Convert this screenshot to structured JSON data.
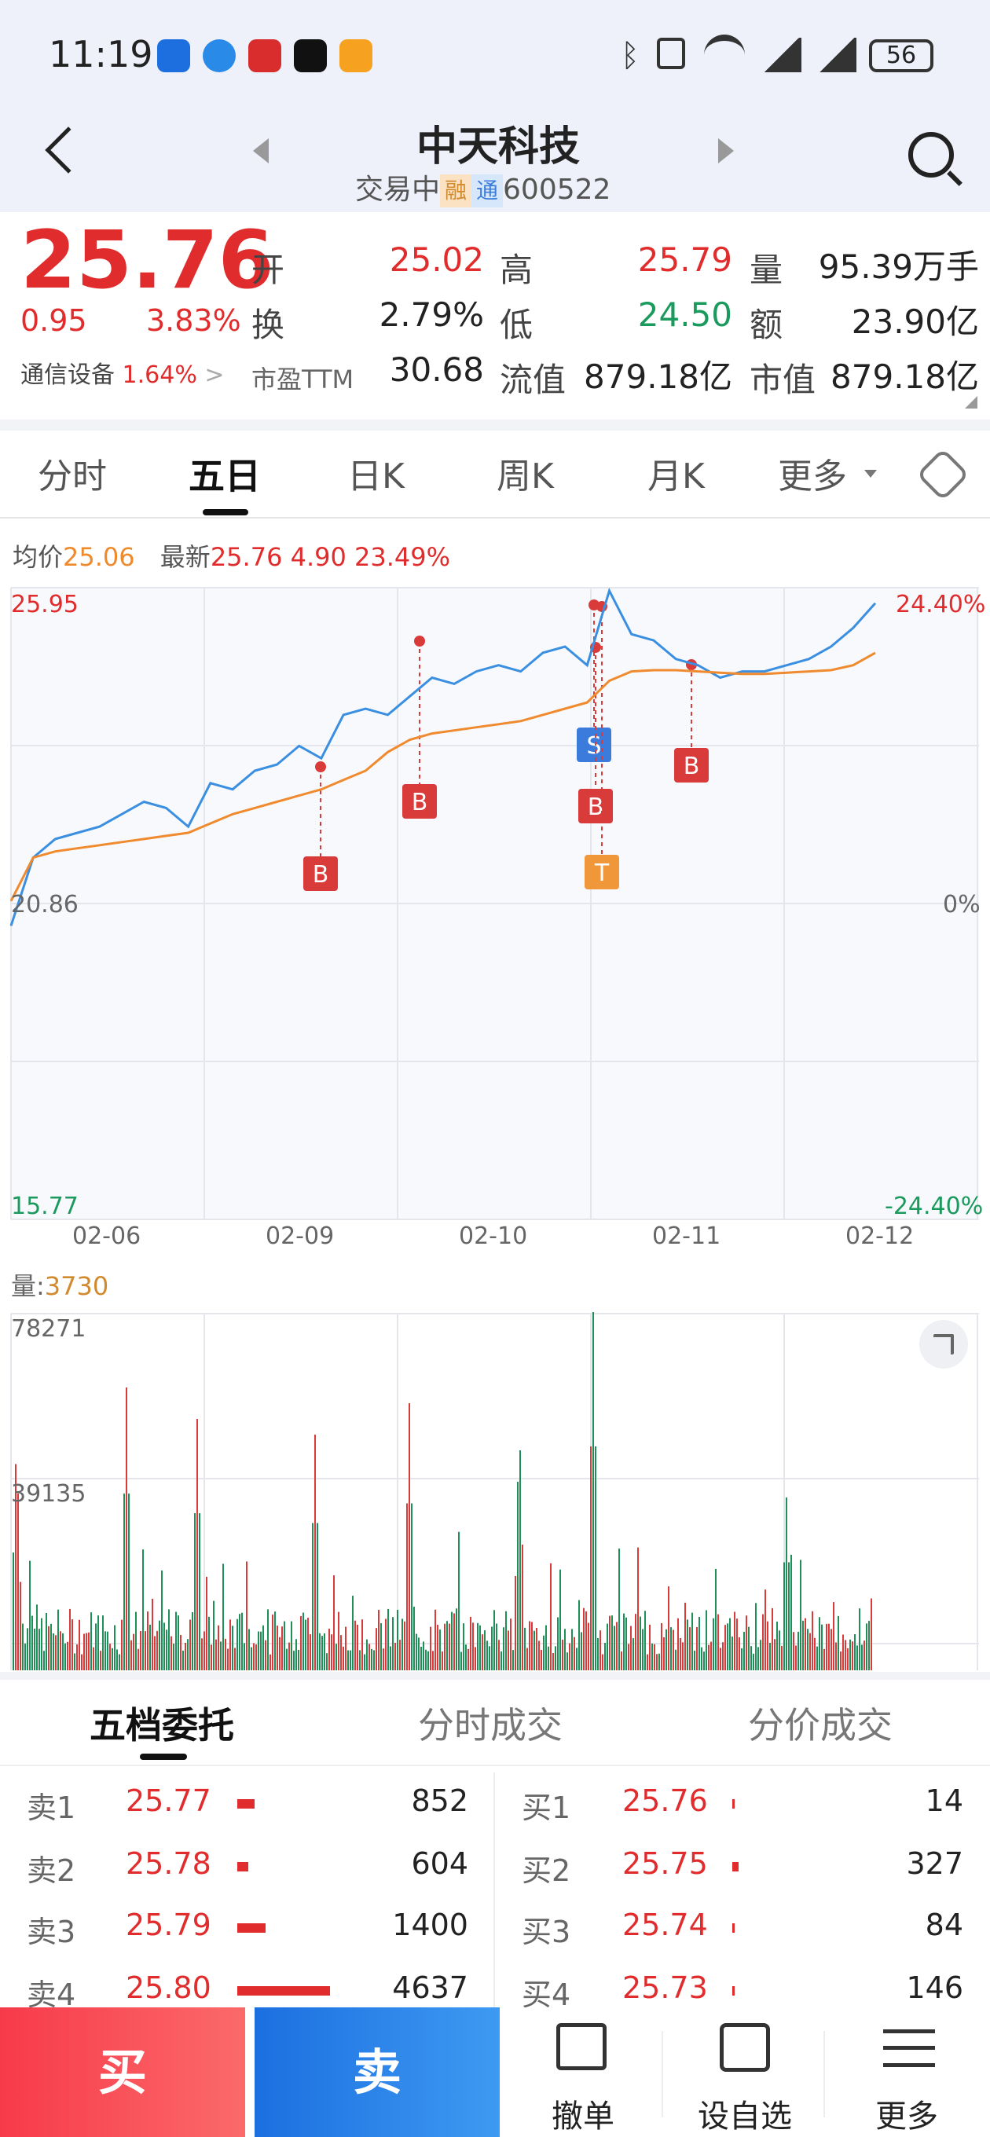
{
  "status_bar": {
    "time": "11:19",
    "battery": "56"
  },
  "header": {
    "title": "中天科技",
    "status": "交易中",
    "tag_rong": "融",
    "tag_tong": "通",
    "code": "600522"
  },
  "quote": {
    "price": "25.76",
    "change": "0.95",
    "change_pct": "3.83%",
    "sector_name": "通信设备",
    "sector_pct": "1.64%",
    "open_label": "开",
    "open": "25.02",
    "high_label": "高",
    "high": "25.79",
    "volume_label": "量",
    "volume": "95.39万手",
    "turnover_label": "换",
    "turnover": "2.79%",
    "low_label": "低",
    "low": "24.50",
    "amount_label": "额",
    "amount": "23.90亿",
    "pe_label": "市盈TTM",
    "pe": "30.68",
    "float_cap_label": "流值",
    "float_cap": "879.18亿",
    "market_cap_label": "市值",
    "market_cap": "879.18亿"
  },
  "chart_tabs": [
    "分时",
    "五日",
    "日K",
    "周K",
    "月K",
    "更多"
  ],
  "chart_info": {
    "avg_label": "均价",
    "avg": "25.06",
    "latest_label": "最新",
    "latest": "25.76",
    "change": "4.90",
    "change_pct": "23.49%"
  },
  "chart_data": {
    "type": "line",
    "x_ticks": [
      "02-06",
      "02-09",
      "02-10",
      "02-11",
      "02-12"
    ],
    "y_left": [
      "25.95",
      "20.86",
      "15.77"
    ],
    "y_right": [
      "24.40%",
      "0%",
      "-24.40%"
    ],
    "ylim": [
      15.77,
      25.95
    ],
    "series": [
      {
        "key": "price",
        "values": [
          20.5,
          21.6,
          21.9,
          22.0,
          22.1,
          22.3,
          22.5,
          22.4,
          22.1,
          22.8,
          22.7,
          23.0,
          23.1,
          23.4,
          23.2,
          23.9,
          24.0,
          23.9,
          24.2,
          24.5,
          24.4,
          24.6,
          24.7,
          24.6,
          24.9,
          25.0,
          24.7,
          25.9,
          25.2,
          25.1,
          24.8,
          24.7,
          24.5,
          24.6,
          24.6,
          24.7,
          24.8,
          25.0,
          25.3,
          25.7
        ]
      },
      {
        "key": "avg",
        "values": [
          20.9,
          21.6,
          21.7,
          21.75,
          21.8,
          21.85,
          21.9,
          21.95,
          22.0,
          22.15,
          22.3,
          22.4,
          22.5,
          22.6,
          22.7,
          22.85,
          23.0,
          23.3,
          23.5,
          23.6,
          23.65,
          23.7,
          23.75,
          23.8,
          23.9,
          24.0,
          24.1,
          24.45,
          24.6,
          24.62,
          24.62,
          24.6,
          24.58,
          24.56,
          24.56,
          24.58,
          24.6,
          24.62,
          24.7,
          24.9
        ]
      }
    ],
    "markers": [
      {
        "label": "B",
        "color": "#d93a3a"
      },
      {
        "label": "B",
        "color": "#d93a3a"
      },
      {
        "label": "S",
        "color": "#3a7bdc"
      },
      {
        "label": "B",
        "color": "#d93a3a"
      },
      {
        "label": "T",
        "color": "#f0973a"
      },
      {
        "label": "B",
        "color": "#d93a3a"
      }
    ]
  },
  "volume_chart": {
    "label": "量",
    "value": "3730",
    "y_top": "78271",
    "y_mid": "39135"
  },
  "order_book_tabs": [
    "五档委托",
    "分时成交",
    "分价成交"
  ],
  "order_book": {
    "sell": [
      {
        "label": "卖1",
        "price": "25.77",
        "qty": "852"
      },
      {
        "label": "卖2",
        "price": "25.78",
        "qty": "604"
      },
      {
        "label": "卖3",
        "price": "25.79",
        "qty": "1400"
      },
      {
        "label": "卖4",
        "price": "25.80",
        "qty": "4637"
      }
    ],
    "buy": [
      {
        "label": "买1",
        "price": "25.76",
        "qty": "14"
      },
      {
        "label": "买2",
        "price": "25.75",
        "qty": "327"
      },
      {
        "label": "买3",
        "price": "25.74",
        "qty": "84"
      },
      {
        "label": "买4",
        "price": "25.73",
        "qty": "146"
      }
    ]
  },
  "footer": {
    "buy": "买",
    "sell": "卖",
    "cancel": "撤单",
    "watchlist": "设自选",
    "more": "更多"
  }
}
